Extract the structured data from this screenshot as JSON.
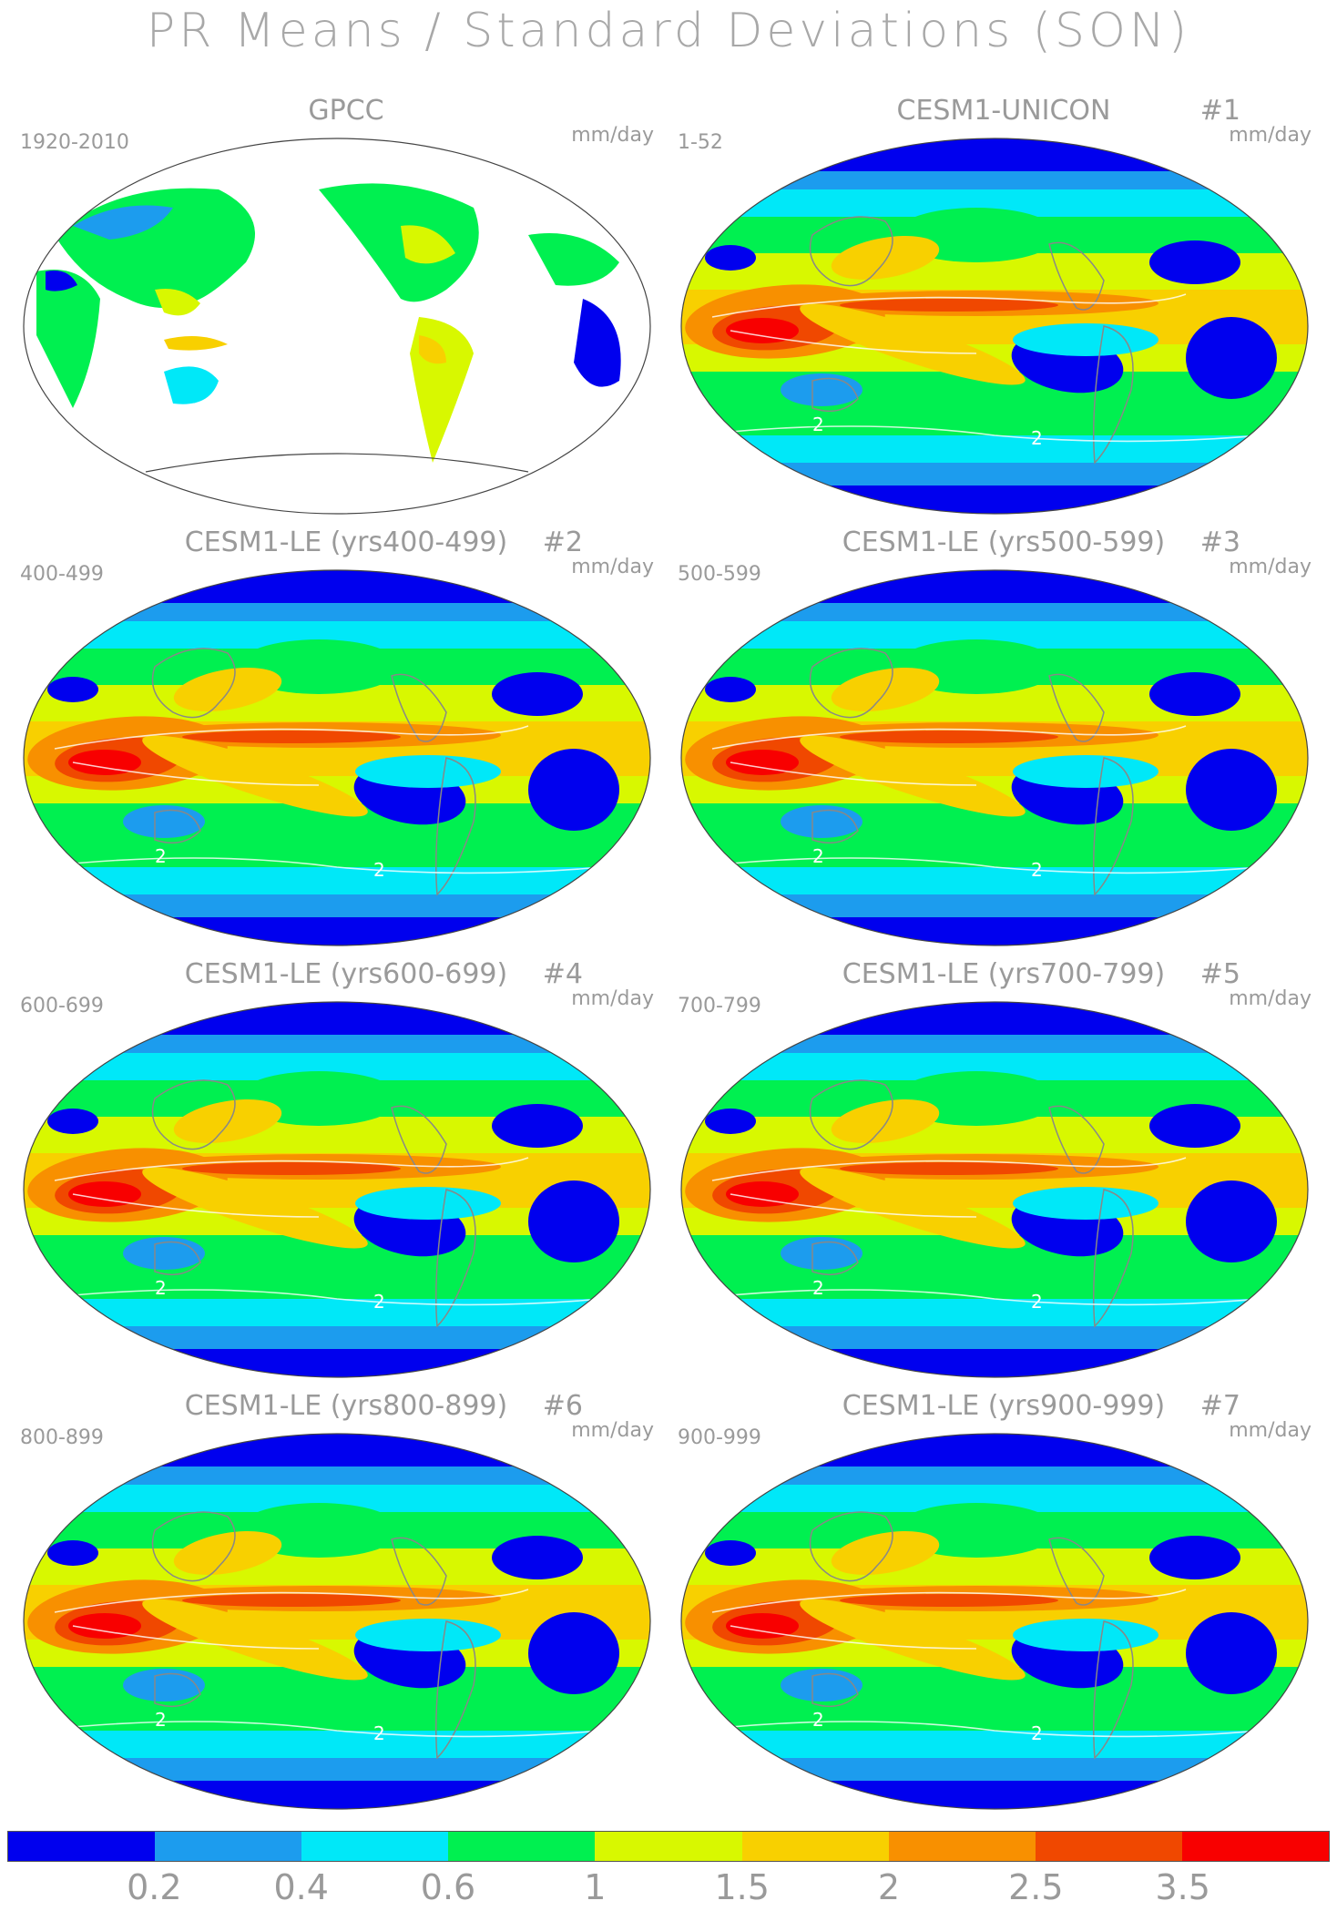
{
  "title": "PR Means / Standard Deviations (SON)",
  "unit_label": "mm/day",
  "panels": [
    {
      "title": "GPCC",
      "number": "",
      "period": "1920-2010",
      "type": "obs"
    },
    {
      "title": "CESM1-UNICON",
      "number": "#1",
      "period": "1-52",
      "type": "model"
    },
    {
      "title": "CESM1-LE (yrs400-499)",
      "number": "#2",
      "period": "400-499",
      "type": "model"
    },
    {
      "title": "CESM1-LE (yrs500-599)",
      "number": "#3",
      "period": "500-599",
      "type": "model"
    },
    {
      "title": "CESM1-LE (yrs600-699)",
      "number": "#4",
      "period": "600-699",
      "type": "model"
    },
    {
      "title": "CESM1-LE (yrs700-799)",
      "number": "#5",
      "period": "700-799",
      "type": "model"
    },
    {
      "title": "CESM1-LE (yrs800-899)",
      "number": "#6",
      "period": "800-899",
      "type": "model"
    },
    {
      "title": "CESM1-LE (yrs900-999)",
      "number": "#7",
      "period": "900-999",
      "type": "model"
    }
  ],
  "contour_label": "2",
  "colorbar": {
    "colors": [
      "#0000ee",
      "#1c9cee",
      "#00e8f8",
      "#00f050",
      "#d8f800",
      "#f8d000",
      "#f89000",
      "#f04800",
      "#f80000"
    ],
    "labels": [
      "0.2",
      "0.4",
      "0.6",
      "1",
      "1.5",
      "2",
      "2.5",
      "3.5"
    ]
  }
}
